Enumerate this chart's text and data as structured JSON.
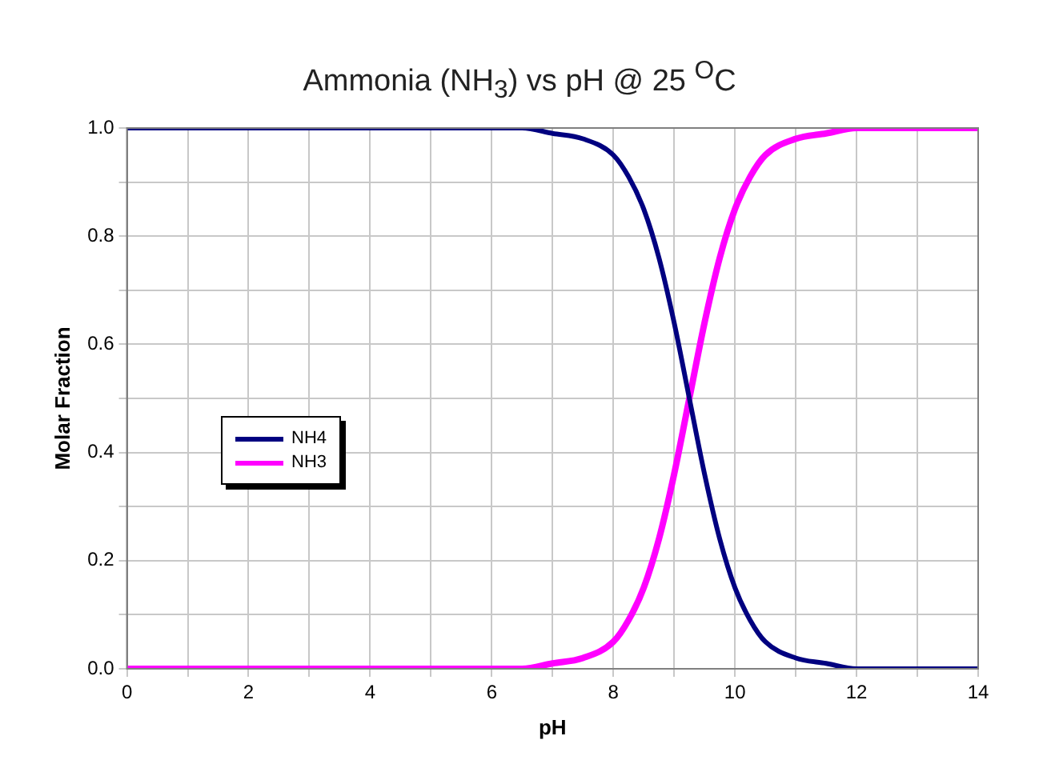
{
  "chart_data": {
    "type": "line",
    "title": "Ammonia (NH$_{3}$) vs pH @ 25 $^{O}$C",
    "xlabel": "pH",
    "ylabel": "Molar Fraction",
    "x": [
      0,
      1,
      2,
      3,
      4,
      5,
      6,
      6.5,
      7,
      7.5,
      8,
      8.25,
      8.5,
      8.75,
      9,
      9.25,
      9.5,
      9.75,
      10,
      10.25,
      10.5,
      11,
      11.5,
      12,
      13,
      14
    ],
    "series": [
      {
        "name": "NH4",
        "color": "#000080",
        "values": [
          1,
          1,
          1,
          1,
          1,
          1,
          1,
          1,
          0.99,
          0.98,
          0.95,
          0.91,
          0.85,
          0.76,
          0.64,
          0.5,
          0.36,
          0.24,
          0.15,
          0.09,
          0.05,
          0.02,
          0.01,
          0,
          0,
          0
        ]
      },
      {
        "name": "NH3",
        "color": "#ff00ff",
        "values": [
          0,
          0,
          0,
          0,
          0,
          0,
          0,
          0,
          0.01,
          0.02,
          0.05,
          0.09,
          0.15,
          0.24,
          0.36,
          0.5,
          0.64,
          0.76,
          0.85,
          0.91,
          0.95,
          0.98,
          0.99,
          1,
          1,
          1
        ]
      }
    ],
    "xlim": [
      0,
      14
    ],
    "xticks": [
      0,
      {
        "value": 1,
        "label": null
      },
      2,
      {
        "value": 3,
        "label": null
      },
      4,
      {
        "value": 5,
        "label": null
      },
      6,
      {
        "value": 7,
        "label": null
      },
      8,
      {
        "value": 9,
        "label": null
      },
      10,
      {
        "value": 11,
        "label": null
      },
      12,
      {
        "value": 13,
        "label": null
      },
      14
    ],
    "ylim": [
      0,
      1
    ],
    "yticks": [
      {
        "value": 0,
        "label": "0.0"
      },
      {
        "value": 0.1,
        "label": null
      },
      {
        "value": 0.2,
        "label": "0.2"
      },
      {
        "value": 0.3,
        "label": null
      },
      {
        "value": 0.4,
        "label": "0.4"
      },
      {
        "value": 0.5,
        "label": null
      },
      {
        "value": 0.6,
        "label": "0.6"
      },
      {
        "value": 0.7,
        "label": null
      },
      {
        "value": 0.8,
        "label": "0.8"
      },
      {
        "value": 0.9,
        "label": null
      },
      {
        "value": 1,
        "label": "1.0"
      }
    ],
    "grid": true,
    "legend": "left",
    "marker": "none",
    "line_style": "solid"
  }
}
